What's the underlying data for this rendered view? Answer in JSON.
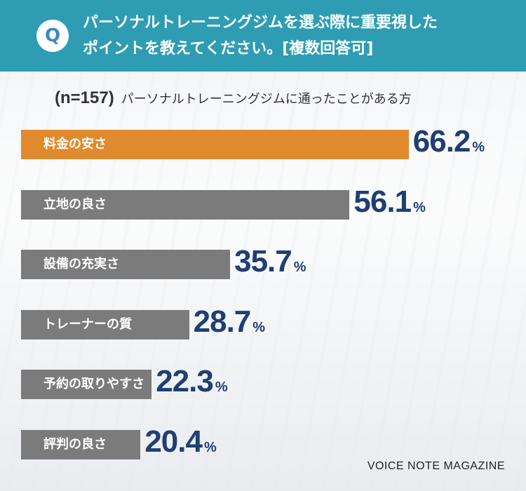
{
  "header": {
    "badge": "Q",
    "title_line1": "パーソナルトレーニングジムを選ぶ際に重要視した",
    "title_line2": "ポイントを教えてください。[複数回答可]"
  },
  "subtitle": {
    "n": "(n=157)",
    "desc": "パーソナルトレーニングジムに通ったことがある方"
  },
  "chart_data": {
    "type": "bar",
    "orientation": "horizontal",
    "categories": [
      "料金の安さ",
      "立地の良さ",
      "設備の充実さ",
      "トレーナーの質",
      "予約の取りやすさ",
      "評判の良さ"
    ],
    "values": [
      66.2,
      56.1,
      35.7,
      28.7,
      22.3,
      20.4
    ],
    "value_labels": [
      "66.2",
      "56.1",
      "35.7",
      "28.7",
      "22.3",
      "20.4"
    ],
    "unit": "%",
    "colors": [
      "#e08a2e",
      "#7b7b7b",
      "#7b7b7b",
      "#7b7b7b",
      "#7b7b7b",
      "#7b7b7b"
    ]
  },
  "brand": "VOICE NOTE MAGAZINE"
}
